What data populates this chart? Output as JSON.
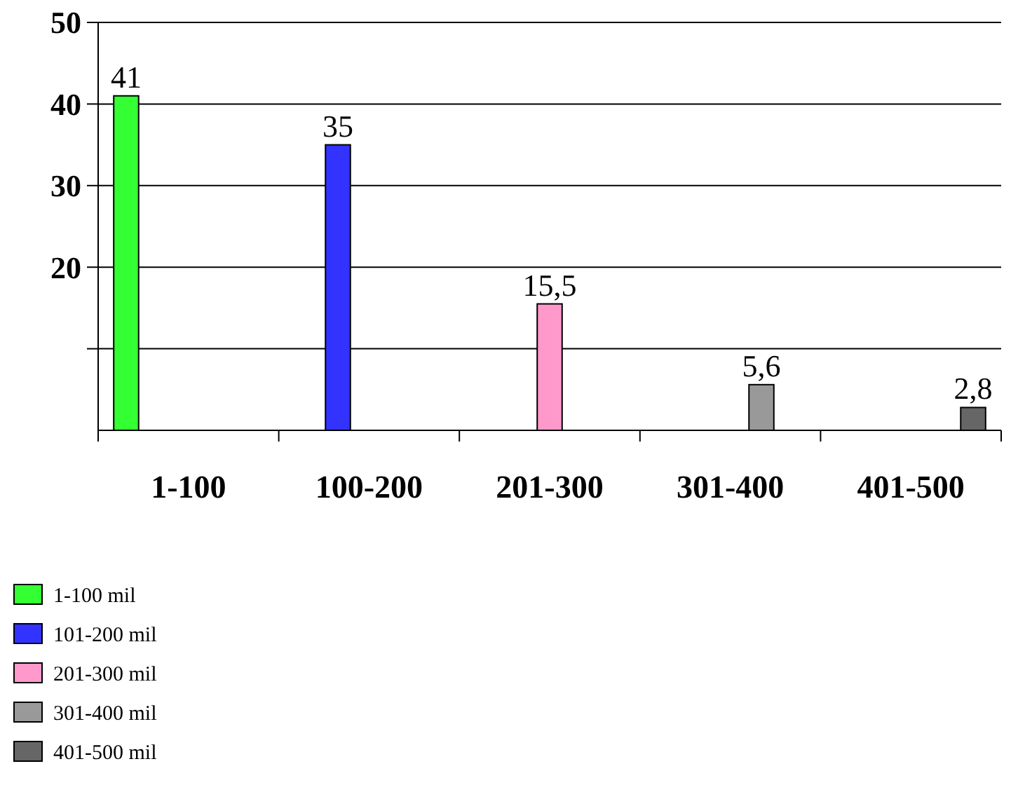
{
  "chart_data": {
    "type": "bar",
    "categories": [
      "1-100",
      "100-200",
      "201-300",
      "301-400",
      "401-500"
    ],
    "series": [
      {
        "name": "1-100 mil",
        "color": "#33ff33",
        "values": [
          41,
          null,
          null,
          null,
          null
        ],
        "value_labels": [
          "41",
          null,
          null,
          null,
          null
        ]
      },
      {
        "name": "101-200 mil",
        "color": "#3333ff",
        "values": [
          null,
          35,
          null,
          null,
          null
        ],
        "value_labels": [
          null,
          "35",
          null,
          null,
          null
        ]
      },
      {
        "name": "201-300 mil",
        "color": "#ff99cc",
        "values": [
          null,
          null,
          15.5,
          null,
          null
        ],
        "value_labels": [
          null,
          null,
          "15,5",
          null,
          null
        ]
      },
      {
        "name": "301-400 mil",
        "color": "#999999",
        "values": [
          null,
          null,
          null,
          5.6,
          null
        ],
        "value_labels": [
          null,
          null,
          null,
          "5,6",
          null
        ]
      },
      {
        "name": "401-500 mil",
        "color": "#666666",
        "values": [
          null,
          null,
          null,
          null,
          2.8
        ],
        "value_labels": [
          null,
          null,
          null,
          null,
          "2,8"
        ]
      }
    ],
    "ylim": [
      0,
      50
    ],
    "yticks": [
      {
        "value": 10,
        "label": null
      },
      20,
      30,
      40,
      50
    ],
    "grid": "y",
    "legend": "bottom left"
  }
}
